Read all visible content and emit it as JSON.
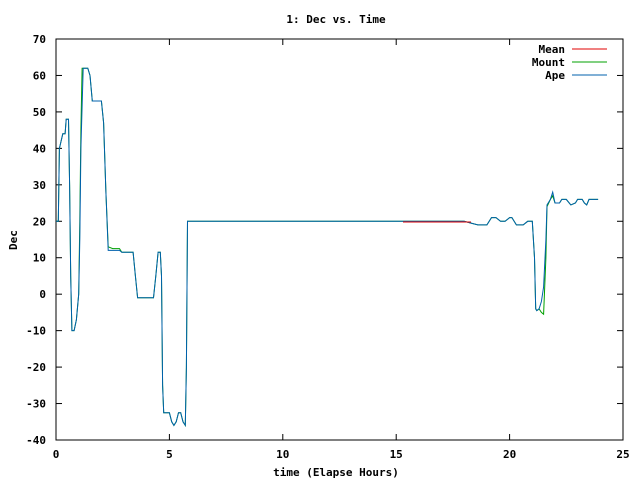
{
  "chart_data": {
    "type": "line",
    "title": "1: Dec vs. Time",
    "xlabel": "time (Elapse Hours)",
    "ylabel": "Dec",
    "xlim": [
      0,
      25
    ],
    "ylim": [
      -40,
      70
    ],
    "xticks": [
      0,
      5,
      10,
      15,
      20,
      25
    ],
    "yticks": [
      -40,
      -30,
      -20,
      -10,
      0,
      10,
      20,
      30,
      40,
      50,
      60,
      70
    ],
    "grid": false,
    "legend_position": "top-right",
    "series": [
      {
        "name": "Mean",
        "color": "#e00000",
        "values": [
          [
            15.3,
            19.8
          ],
          [
            18.3,
            19.8
          ]
        ]
      },
      {
        "name": "Mount",
        "color": "#00a000",
        "values": [
          [
            0.0,
            20
          ],
          [
            0.1,
            20
          ],
          [
            0.15,
            40
          ],
          [
            0.3,
            44
          ],
          [
            0.4,
            44
          ],
          [
            0.45,
            48
          ],
          [
            0.55,
            48
          ],
          [
            0.6,
            30
          ],
          [
            0.65,
            5
          ],
          [
            0.7,
            -10
          ],
          [
            0.8,
            -10
          ],
          [
            0.9,
            -7
          ],
          [
            1.0,
            0
          ],
          [
            1.05,
            20
          ],
          [
            1.1,
            45
          ],
          [
            1.15,
            62
          ],
          [
            1.4,
            62
          ],
          [
            1.5,
            60
          ],
          [
            1.6,
            53
          ],
          [
            2.0,
            53
          ],
          [
            2.1,
            47
          ],
          [
            2.2,
            28
          ],
          [
            2.3,
            13
          ],
          [
            2.5,
            12.5
          ],
          [
            2.8,
            12.5
          ],
          [
            2.9,
            11.5
          ],
          [
            3.4,
            11.5
          ],
          [
            3.5,
            5
          ],
          [
            3.6,
            -1
          ],
          [
            4.3,
            -1
          ],
          [
            4.4,
            5
          ],
          [
            4.5,
            11.5
          ],
          [
            4.6,
            11.5
          ],
          [
            4.65,
            5
          ],
          [
            4.7,
            -25
          ],
          [
            4.75,
            -32.5
          ],
          [
            5.0,
            -32.5
          ],
          [
            5.1,
            -35
          ],
          [
            5.2,
            -36
          ],
          [
            5.3,
            -35
          ],
          [
            5.4,
            -32.5
          ],
          [
            5.5,
            -32.5
          ],
          [
            5.6,
            -35
          ],
          [
            5.7,
            -36
          ],
          [
            5.75,
            -20
          ],
          [
            5.8,
            20
          ],
          [
            12,
            20
          ],
          [
            18,
            20
          ],
          [
            18.3,
            19.5
          ],
          [
            18.6,
            19
          ],
          [
            19,
            19
          ],
          [
            19.2,
            21
          ],
          [
            19.4,
            21
          ],
          [
            19.6,
            20
          ],
          [
            19.8,
            20
          ],
          [
            20,
            21
          ],
          [
            20.1,
            21
          ],
          [
            20.3,
            19
          ],
          [
            20.6,
            19
          ],
          [
            20.8,
            20
          ],
          [
            21.0,
            20
          ],
          [
            21.1,
            10
          ],
          [
            21.15,
            -4
          ],
          [
            21.2,
            -4.5
          ],
          [
            21.3,
            -4
          ],
          [
            21.4,
            -5
          ],
          [
            21.5,
            -5.5
          ],
          [
            21.6,
            10
          ],
          [
            21.65,
            24
          ],
          [
            21.8,
            26
          ],
          [
            21.9,
            27
          ],
          [
            22.0,
            25
          ],
          [
            22.2,
            25
          ],
          [
            22.3,
            26
          ],
          [
            22.5,
            26
          ],
          [
            22.7,
            24.5
          ],
          [
            22.9,
            25
          ],
          [
            23.0,
            26
          ],
          [
            23.2,
            26
          ],
          [
            23.3,
            25
          ],
          [
            23.4,
            24.5
          ],
          [
            23.5,
            26
          ],
          [
            23.9,
            26
          ]
        ]
      },
      {
        "name": "Ape",
        "color": "#0060ad",
        "values": [
          [
            0.0,
            20
          ],
          [
            0.1,
            20
          ],
          [
            0.15,
            40
          ],
          [
            0.3,
            44
          ],
          [
            0.4,
            44
          ],
          [
            0.45,
            48
          ],
          [
            0.55,
            48
          ],
          [
            0.6,
            30
          ],
          [
            0.65,
            5
          ],
          [
            0.7,
            -10
          ],
          [
            0.8,
            -10
          ],
          [
            0.9,
            -7
          ],
          [
            1.0,
            0
          ],
          [
            1.05,
            15
          ],
          [
            1.1,
            40
          ],
          [
            1.2,
            62
          ],
          [
            1.4,
            62
          ],
          [
            1.5,
            60
          ],
          [
            1.6,
            53
          ],
          [
            2.0,
            53
          ],
          [
            2.1,
            47
          ],
          [
            2.2,
            28
          ],
          [
            2.3,
            12
          ],
          [
            2.5,
            12
          ],
          [
            2.8,
            12
          ],
          [
            2.9,
            11.5
          ],
          [
            3.4,
            11.5
          ],
          [
            3.5,
            5
          ],
          [
            3.6,
            -1
          ],
          [
            4.3,
            -1
          ],
          [
            4.4,
            5
          ],
          [
            4.5,
            11.5
          ],
          [
            4.6,
            11.5
          ],
          [
            4.65,
            5
          ],
          [
            4.7,
            -25
          ],
          [
            4.75,
            -32.5
          ],
          [
            5.0,
            -32.5
          ],
          [
            5.1,
            -35
          ],
          [
            5.2,
            -36
          ],
          [
            5.3,
            -35
          ],
          [
            5.4,
            -32.5
          ],
          [
            5.5,
            -32.5
          ],
          [
            5.6,
            -35
          ],
          [
            5.7,
            -36
          ],
          [
            5.75,
            -20
          ],
          [
            5.8,
            20
          ],
          [
            12,
            20
          ],
          [
            18,
            20
          ],
          [
            18.3,
            19.5
          ],
          [
            18.6,
            19
          ],
          [
            19,
            19
          ],
          [
            19.2,
            21
          ],
          [
            19.4,
            21
          ],
          [
            19.6,
            20
          ],
          [
            19.8,
            20
          ],
          [
            20,
            21
          ],
          [
            20.1,
            21
          ],
          [
            20.3,
            19
          ],
          [
            20.6,
            19
          ],
          [
            20.8,
            20
          ],
          [
            21.0,
            20
          ],
          [
            21.1,
            10
          ],
          [
            21.15,
            -4
          ],
          [
            21.2,
            -4.5
          ],
          [
            21.3,
            -4
          ],
          [
            21.4,
            -2
          ],
          [
            21.5,
            2
          ],
          [
            21.6,
            15
          ],
          [
            21.65,
            24.5
          ],
          [
            21.8,
            26
          ],
          [
            21.9,
            28
          ],
          [
            22.0,
            25
          ],
          [
            22.2,
            25
          ],
          [
            22.3,
            26
          ],
          [
            22.5,
            26
          ],
          [
            22.7,
            24.5
          ],
          [
            22.9,
            25
          ],
          [
            23.0,
            26
          ],
          [
            23.2,
            26
          ],
          [
            23.3,
            25
          ],
          [
            23.4,
            24.5
          ],
          [
            23.5,
            26
          ],
          [
            23.9,
            26
          ]
        ]
      }
    ]
  }
}
